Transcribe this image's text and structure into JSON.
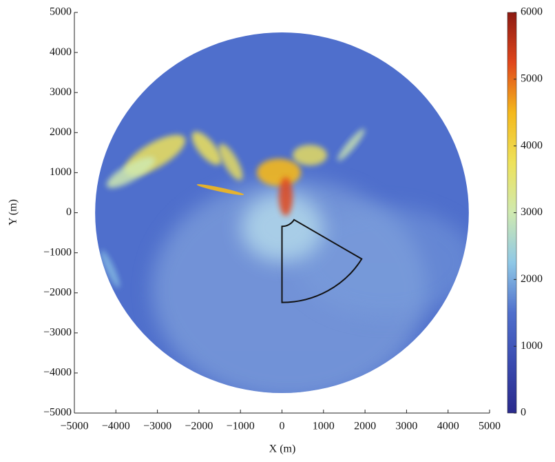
{
  "chart_data": {
    "type": "heatmap",
    "xlabel": "X (m)",
    "ylabel": "Y (m)",
    "xlim": [
      -5000,
      5000
    ],
    "ylim": [
      -5000,
      5000
    ],
    "xticks": [
      {
        "value": -5000,
        "label": "−5000"
      },
      {
        "value": -4000,
        "label": "−4000"
      },
      {
        "value": -3000,
        "label": "−3000"
      },
      {
        "value": -2000,
        "label": "−2000"
      },
      {
        "value": -1000,
        "label": "−1000"
      },
      0,
      1000,
      2000,
      3000,
      4000,
      5000
    ],
    "yticks": [
      {
        "value": -5000,
        "label": "−5000"
      },
      {
        "value": -4000,
        "label": "−4000"
      },
      {
        "value": -3000,
        "label": "−3000"
      },
      {
        "value": -2000,
        "label": "−2000"
      },
      {
        "value": -1000,
        "label": "−1000"
      },
      0,
      1000,
      2000,
      3000,
      4000,
      5000
    ],
    "range": 4500,
    "colorbar_lim": [
      0,
      6000
    ],
    "colorbar_ticks": [
      0,
      1000,
      2000,
      3000,
      4000,
      5000,
      6000
    ],
    "colormap": [
      "#2a2a8c",
      "#3a4bb0",
      "#4f6fcc",
      "#8fc8e6",
      "#cfe9b0",
      "#eee25a",
      "#f4b81c",
      "#e0461c",
      "#8c1a12"
    ],
    "sector": {
      "r": [
        340,
        2240
      ],
      "theta": [
        -90,
        -31
      ]
    }
  }
}
